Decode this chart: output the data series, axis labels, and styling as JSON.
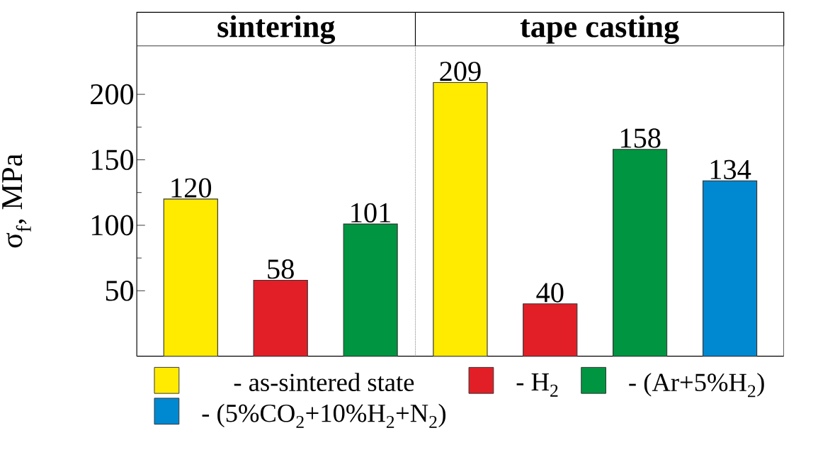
{
  "chart_data": {
    "type": "bar",
    "categories": [
      null,
      null,
      null,
      null,
      null,
      null,
      null
    ],
    "series": [
      {
        "name": "- as-sintered state",
        "color": "#ffeb00",
        "values": [
          120,
          null,
          null,
          209,
          null,
          null,
          null
        ]
      },
      {
        "name": "- H$_{2}$",
        "color": "#e21f26",
        "values": [
          null,
          58,
          null,
          null,
          40,
          null,
          null
        ]
      },
      {
        "name": "- (Ar+5%H$_{2}$)",
        "color": "#009540",
        "values": [
          null,
          null,
          101,
          null,
          null,
          158,
          null
        ]
      },
      {
        "name": "- (5%CO$_{2}$+10%H$_{2}$+N$_{2}$)",
        "color": "#0088d1",
        "values": [
          null,
          null,
          null,
          null,
          null,
          null,
          134
        ]
      }
    ],
    "ylabel": "σ$_{f}$, MPa",
    "annotations": [
      "sintering",
      "tape casting"
    ],
    "ylim": [
      0,
      237
    ],
    "yticks": [
      50,
      100,
      150,
      200
    ],
    "data_labels": true,
    "grid": false,
    "legend": "bottom"
  }
}
